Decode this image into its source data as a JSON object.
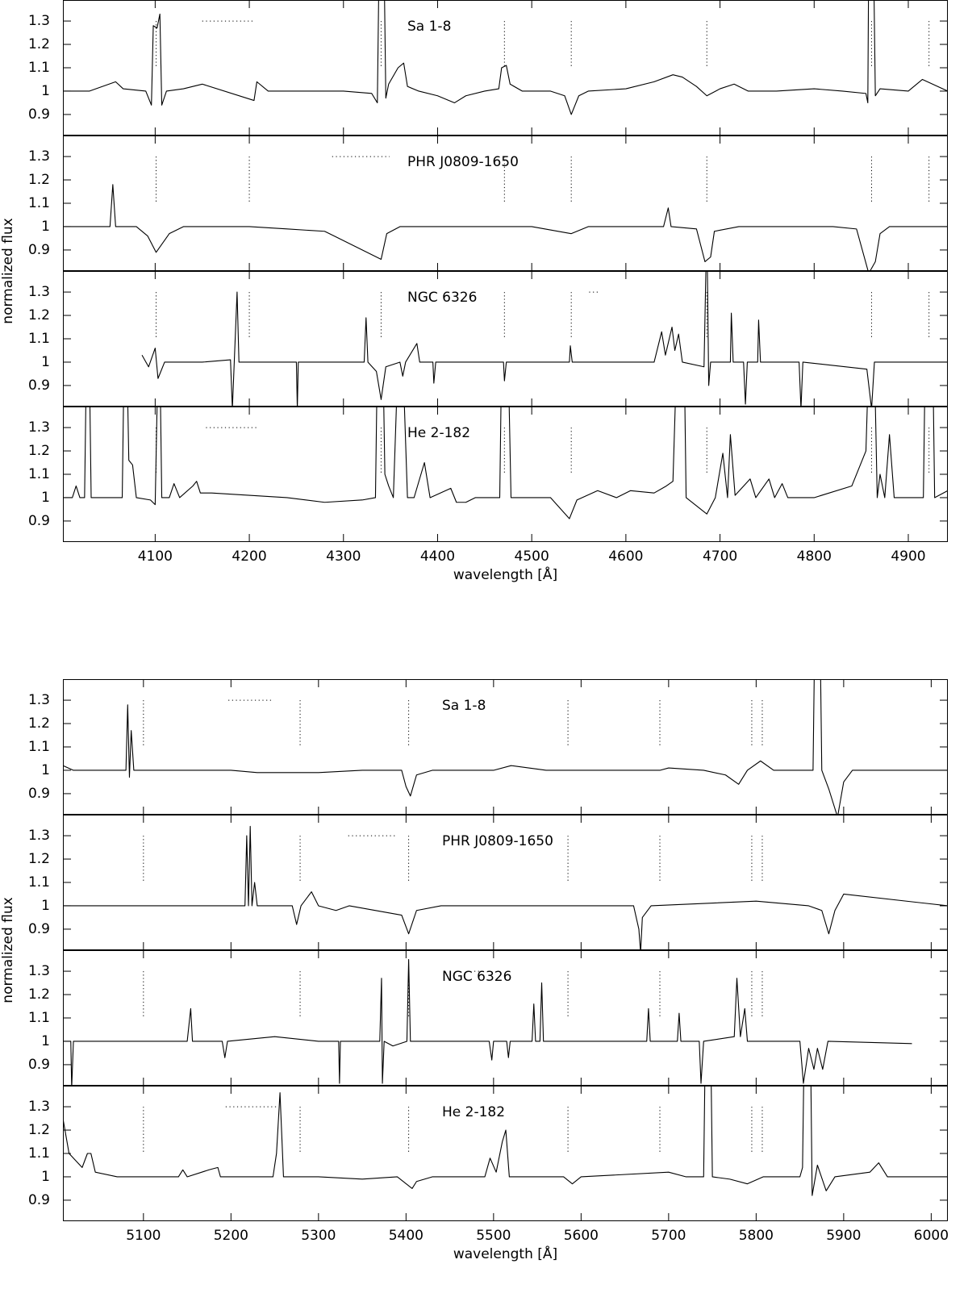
{
  "chart_data": [
    {
      "type": "line",
      "xlabel": "wavelength [Å]",
      "ylabel": "normalized flux",
      "color": "#000000",
      "xlim": [
        4002,
        4942
      ],
      "xticks": [
        4100,
        4200,
        4300,
        4400,
        4500,
        4600,
        4700,
        4800,
        4900
      ],
      "ylim": [
        0.81,
        1.39
      ],
      "yticks": [
        0.9,
        1,
        1.1,
        1.2,
        1.3
      ],
      "line_id_span": [
        1.1,
        1.3
      ],
      "panels": [
        {
          "label": "Sa 1-8",
          "x": [
            4003,
            4030,
            4058,
            4066,
            4090,
            4096,
            4098,
            4102,
            4105,
            4107,
            4112,
            4130,
            4150,
            4205,
            4208,
            4220,
            4260,
            4300,
            4330,
            4336,
            4338,
            4343,
            4345,
            4348,
            4358,
            4364,
            4368,
            4380,
            4400,
            4418,
            4430,
            4450,
            4465,
            4468,
            4473,
            4477,
            4490,
            4520,
            4535,
            4542,
            4550,
            4560,
            4600,
            4630,
            4650,
            4660,
            4675,
            4686,
            4700,
            4715,
            4730,
            4760,
            4800,
            4830,
            4855,
            4857,
            4858,
            4863,
            4865,
            4870,
            4900,
            4915,
            4942
          ],
          "values": [
            1.0,
            1.0,
            1.04,
            1.01,
            1.0,
            0.94,
            1.28,
            1.27,
            1.33,
            0.94,
            1.0,
            1.01,
            1.03,
            0.96,
            1.04,
            1.0,
            1.0,
            1.0,
            0.99,
            0.95,
            1.6,
            1.6,
            0.97,
            1.03,
            1.1,
            1.12,
            1.02,
            1.0,
            0.98,
            0.95,
            0.98,
            1.0,
            1.01,
            1.1,
            1.11,
            1.03,
            1.0,
            1.0,
            0.98,
            0.9,
            0.98,
            1.0,
            1.01,
            1.04,
            1.07,
            1.06,
            1.02,
            0.98,
            1.01,
            1.03,
            1.0,
            1.0,
            1.01,
            1.0,
            0.99,
            0.95,
            1.6,
            1.6,
            0.98,
            1.01,
            1.0,
            1.05,
            1.0
          ],
          "line_ids": [
            4101,
            4340,
            4471,
            4542,
            4686,
            4861,
            4922
          ],
          "dotted_range": [
            4150,
            4206
          ]
        },
        {
          "label": "PHR J0809-1650",
          "x": [
            4003,
            4040,
            4052,
            4055,
            4058,
            4080,
            4092,
            4101,
            4115,
            4130,
            4200,
            4240,
            4280,
            4290,
            4340,
            4346,
            4360,
            4400,
            4500,
            4542,
            4560,
            4640,
            4645,
            4648,
            4675,
            4684,
            4690,
            4694,
            4720,
            4820,
            4845,
            4858,
            4865,
            4870,
            4880,
            4942
          ],
          "values": [
            1.0,
            1.0,
            1.0,
            1.18,
            1.0,
            1.0,
            0.96,
            0.89,
            0.97,
            1.0,
            1.0,
            0.99,
            0.98,
            0.96,
            0.86,
            0.97,
            1.0,
            1.0,
            1.0,
            0.97,
            1.0,
            1.0,
            1.08,
            1.0,
            0.99,
            0.85,
            0.87,
            0.98,
            1.0,
            1.0,
            0.99,
            0.8,
            0.85,
            0.97,
            1.0,
            1.0
          ],
          "line_ids": [
            4101,
            4200,
            4471,
            4542,
            4686,
            4861,
            4922
          ],
          "dotted_range": [
            4288,
            4349
          ]
        },
        {
          "label": "NGC 6326",
          "x": [
            4086,
            4093,
            4100,
            4103,
            4110,
            4150,
            4180,
            4182,
            4184,
            4187,
            4189,
            4230,
            4250,
            4251,
            4252,
            4322,
            4324,
            4326,
            4335,
            4340,
            4345,
            4360,
            4363,
            4366,
            4378,
            4381,
            4395,
            4396,
            4398,
            4470,
            4471,
            4473,
            4540,
            4541,
            4543,
            4600,
            4630,
            4638,
            4642,
            4649,
            4652,
            4656,
            4660,
            4683,
            4686,
            4688,
            4690,
            4711,
            4712,
            4714,
            4725,
            4727,
            4729,
            4740,
            4741,
            4743,
            4784,
            4786,
            4788,
            4856,
            4861,
            4864,
            4942
          ],
          "values": [
            1.03,
            0.98,
            1.06,
            0.93,
            1.0,
            1.0,
            1.01,
            0.8,
            1.0,
            1.3,
            1.0,
            1.0,
            1.0,
            0.8,
            1.0,
            1.0,
            1.19,
            1.0,
            0.96,
            0.84,
            0.98,
            1.0,
            0.94,
            1.0,
            1.08,
            1.0,
            1.0,
            0.91,
            1.0,
            1.0,
            0.92,
            1.0,
            1.0,
            1.07,
            1.0,
            1.0,
            1.0,
            1.13,
            1.03,
            1.15,
            1.05,
            1.12,
            1.0,
            0.98,
            1.6,
            0.9,
            1.0,
            1.0,
            1.21,
            1.0,
            1.0,
            0.82,
            1.0,
            1.0,
            1.18,
            1.0,
            1.0,
            0.8,
            1.0,
            0.97,
            0.8,
            1.0,
            1.0
          ],
          "line_ids": [
            4101,
            4200,
            4340,
            4471,
            4542,
            4686,
            4861,
            4922
          ],
          "dotted_range": [
            4561,
            4571
          ]
        },
        {
          "label": "He 2-182",
          "x": [
            4003,
            4012,
            4016,
            4020,
            4025,
            4027,
            4030,
            4032,
            4065,
            4067,
            4070,
            4072,
            4076,
            4080,
            4095,
            4100,
            4103,
            4105,
            4107,
            4115,
            4120,
            4126,
            4140,
            4144,
            4148,
            4160,
            4240,
            4280,
            4320,
            4334,
            4336,
            4342,
            4344,
            4348,
            4353,
            4358,
            4363,
            4368,
            4375,
            4386,
            4392,
            4414,
            4420,
            4430,
            4440,
            4466,
            4468,
            4475,
            4478,
            4520,
            4540,
            4548,
            4570,
            4590,
            4605,
            4630,
            4643,
            4650,
            4654,
            4662,
            4664,
            4686,
            4695,
            4703,
            4708,
            4711,
            4716,
            4732,
            4738,
            4752,
            4758,
            4766,
            4772,
            4800,
            4840,
            4855,
            4858,
            4864,
            4867,
            4870,
            4875,
            4880,
            4885,
            4916,
            4918,
            4926,
            4928,
            4942
          ],
          "values": [
            1.0,
            1.0,
            1.05,
            1.0,
            1.0,
            1.6,
            1.6,
            1.0,
            1.0,
            1.6,
            1.6,
            1.16,
            1.14,
            1.0,
            0.99,
            0.97,
            1.6,
            1.6,
            1.0,
            1.0,
            1.06,
            1.0,
            1.05,
            1.07,
            1.02,
            1.02,
            1.0,
            0.98,
            0.99,
            1.0,
            1.6,
            1.6,
            1.1,
            1.05,
            1.0,
            1.6,
            1.6,
            1.0,
            1.0,
            1.15,
            1.0,
            1.04,
            0.98,
            0.98,
            1.0,
            1.0,
            1.6,
            1.6,
            1.0,
            1.0,
            0.91,
            0.99,
            1.03,
            1.0,
            1.03,
            1.02,
            1.05,
            1.07,
            1.6,
            1.6,
            1.0,
            0.93,
            1.0,
            1.19,
            1.0,
            1.27,
            1.01,
            1.08,
            1.0,
            1.08,
            1.0,
            1.06,
            1.0,
            1.0,
            1.05,
            1.2,
            1.6,
            1.6,
            1.0,
            1.1,
            1.0,
            1.27,
            1.0,
            1.0,
            1.6,
            1.6,
            1.0,
            1.03
          ],
          "line_ids": [
            4101,
            4340,
            4471,
            4542,
            4686,
            4861,
            4922
          ],
          "dotted_range": [
            4154,
            4208
          ]
        }
      ]
    },
    {
      "type": "line",
      "xlabel": "wavelength [Å]",
      "ylabel": "normalized flux",
      "color": "#000000",
      "xlim": [
        5008,
        6019
      ],
      "xticks": [
        5100,
        5200,
        5300,
        5400,
        5500,
        5600,
        5700,
        5800,
        5900,
        6000
      ],
      "ylim": [
        0.81,
        1.39
      ],
      "yticks": [
        0.9,
        1,
        1.1,
        1.2,
        1.3
      ],
      "line_id_span": [
        1.1,
        1.3
      ],
      "panels": [
        {
          "label": "Sa 1-8",
          "x": [
            5008,
            5020,
            5070,
            5080,
            5082,
            5084,
            5086,
            5089,
            5150,
            5200,
            5230,
            5260,
            5300,
            5350,
            5395,
            5400,
            5405,
            5412,
            5430,
            5500,
            5520,
            5560,
            5600,
            5690,
            5700,
            5740,
            5765,
            5780,
            5790,
            5805,
            5820,
            5865,
            5867,
            5873,
            5875,
            5883,
            5893,
            5900,
            5910,
            6019
          ],
          "values": [
            1.02,
            1.0,
            1.0,
            1.0,
            1.28,
            0.97,
            1.17,
            1.0,
            1.0,
            1.0,
            0.99,
            0.99,
            0.99,
            1.0,
            1.0,
            0.93,
            0.89,
            0.98,
            1.0,
            1.0,
            1.02,
            1.0,
            1.0,
            1.0,
            1.01,
            1.0,
            0.98,
            0.94,
            1.0,
            1.04,
            1.0,
            1.0,
            1.6,
            1.6,
            1.0,
            0.92,
            0.8,
            0.95,
            1.0,
            1.0
          ],
          "line_ids": [
            5100,
            5279,
            5403,
            5585,
            5690,
            5795,
            5807
          ],
          "dotted_range": [
            5197,
            5249
          ]
        },
        {
          "label": "PHR J0809-1650",
          "x": [
            5008,
            5100,
            5200,
            5216,
            5218,
            5220,
            5222,
            5224,
            5227,
            5230,
            5270,
            5275,
            5280,
            5292,
            5300,
            5320,
            5335,
            5395,
            5403,
            5412,
            5440,
            5600,
            5660,
            5666,
            5668,
            5670,
            5680,
            5800,
            5860,
            5875,
            5883,
            5890,
            5900,
            6019
          ],
          "values": [
            1.0,
            1.0,
            1.0,
            1.0,
            1.3,
            1.0,
            1.34,
            1.0,
            1.1,
            1.0,
            1.0,
            0.92,
            1.0,
            1.06,
            1.0,
            0.98,
            1.0,
            0.96,
            0.88,
            0.98,
            1.0,
            1.0,
            1.0,
            0.9,
            0.8,
            0.95,
            1.0,
            1.02,
            1.0,
            0.98,
            0.88,
            0.98,
            1.05,
            1.0
          ],
          "line_ids": [
            5100,
            5279,
            5403,
            5585,
            5690,
            5795,
            5807
          ],
          "dotted_range": [
            5334,
            5390
          ]
        },
        {
          "label": "NGC 6326",
          "x": [
            5008,
            5017,
            5018,
            5020,
            5100,
            5150,
            5154,
            5156,
            5190,
            5193,
            5196,
            5250,
            5300,
            5323,
            5324,
            5325,
            5370,
            5372,
            5373,
            5375,
            5385,
            5401,
            5403,
            5405,
            5440,
            5495,
            5498,
            5500,
            5515,
            5517,
            5519,
            5544,
            5546,
            5548,
            5553,
            5555,
            5557,
            5660,
            5675,
            5677,
            5679,
            5710,
            5712,
            5714,
            5735,
            5737,
            5740,
            5775,
            5778,
            5782,
            5787,
            5790,
            5850,
            5854,
            5860,
            5866,
            5870,
            5876,
            5882,
            5978
          ],
          "values": [
            1.0,
            1.0,
            0.8,
            1.0,
            1.0,
            1.0,
            1.14,
            1.0,
            1.0,
            0.93,
            1.0,
            1.02,
            1.0,
            1.0,
            0.82,
            1.0,
            1.0,
            1.27,
            0.82,
            1.0,
            0.98,
            1.0,
            1.35,
            1.0,
            1.0,
            1.0,
            0.92,
            1.0,
            1.0,
            0.93,
            1.0,
            1.0,
            1.16,
            1.0,
            1.0,
            1.25,
            1.0,
            1.0,
            1.0,
            1.14,
            1.0,
            1.0,
            1.12,
            1.0,
            1.0,
            0.82,
            1.0,
            1.02,
            1.27,
            1.02,
            1.14,
            1.0,
            1.0,
            0.82,
            0.97,
            0.88,
            0.97,
            0.88,
            1.0,
            0.99
          ],
          "line_ids": [
            5100,
            5279,
            5403,
            5585,
            5690,
            5795,
            5807
          ],
          "dotted_range": [
            5478,
            5486
          ]
        },
        {
          "label": "He 2-182",
          "x": [
            5008,
            5015,
            5025,
            5030,
            5036,
            5040,
            5045,
            5070,
            5140,
            5145,
            5150,
            5175,
            5185,
            5188,
            5248,
            5252,
            5256,
            5260,
            5300,
            5350,
            5390,
            5407,
            5412,
            5430,
            5490,
            5496,
            5503,
            5510,
            5514,
            5518,
            5580,
            5590,
            5600,
            5700,
            5720,
            5740,
            5742,
            5748,
            5750,
            5770,
            5790,
            5808,
            5850,
            5853,
            5855,
            5862,
            5864,
            5870,
            5880,
            5890,
            5930,
            5940,
            5950,
            6019
          ],
          "values": [
            1.25,
            1.1,
            1.06,
            1.04,
            1.1,
            1.1,
            1.02,
            1.0,
            1.0,
            1.03,
            1.0,
            1.03,
            1.04,
            1.0,
            1.0,
            1.1,
            1.36,
            1.0,
            1.0,
            0.99,
            1.0,
            0.95,
            0.98,
            1.0,
            1.0,
            1.08,
            1.02,
            1.15,
            1.2,
            1.0,
            1.0,
            0.97,
            1.0,
            1.02,
            1.0,
            1.0,
            1.6,
            1.6,
            1.0,
            0.99,
            0.97,
            1.0,
            1.0,
            1.04,
            1.6,
            1.6,
            0.92,
            1.05,
            0.94,
            1.0,
            1.02,
            1.06,
            1.0,
            1.0
          ],
          "line_ids": [
            5100,
            5279,
            5403,
            5585,
            5690,
            5795,
            5807
          ],
          "dotted_range": [
            5194,
            5252
          ]
        }
      ]
    }
  ]
}
